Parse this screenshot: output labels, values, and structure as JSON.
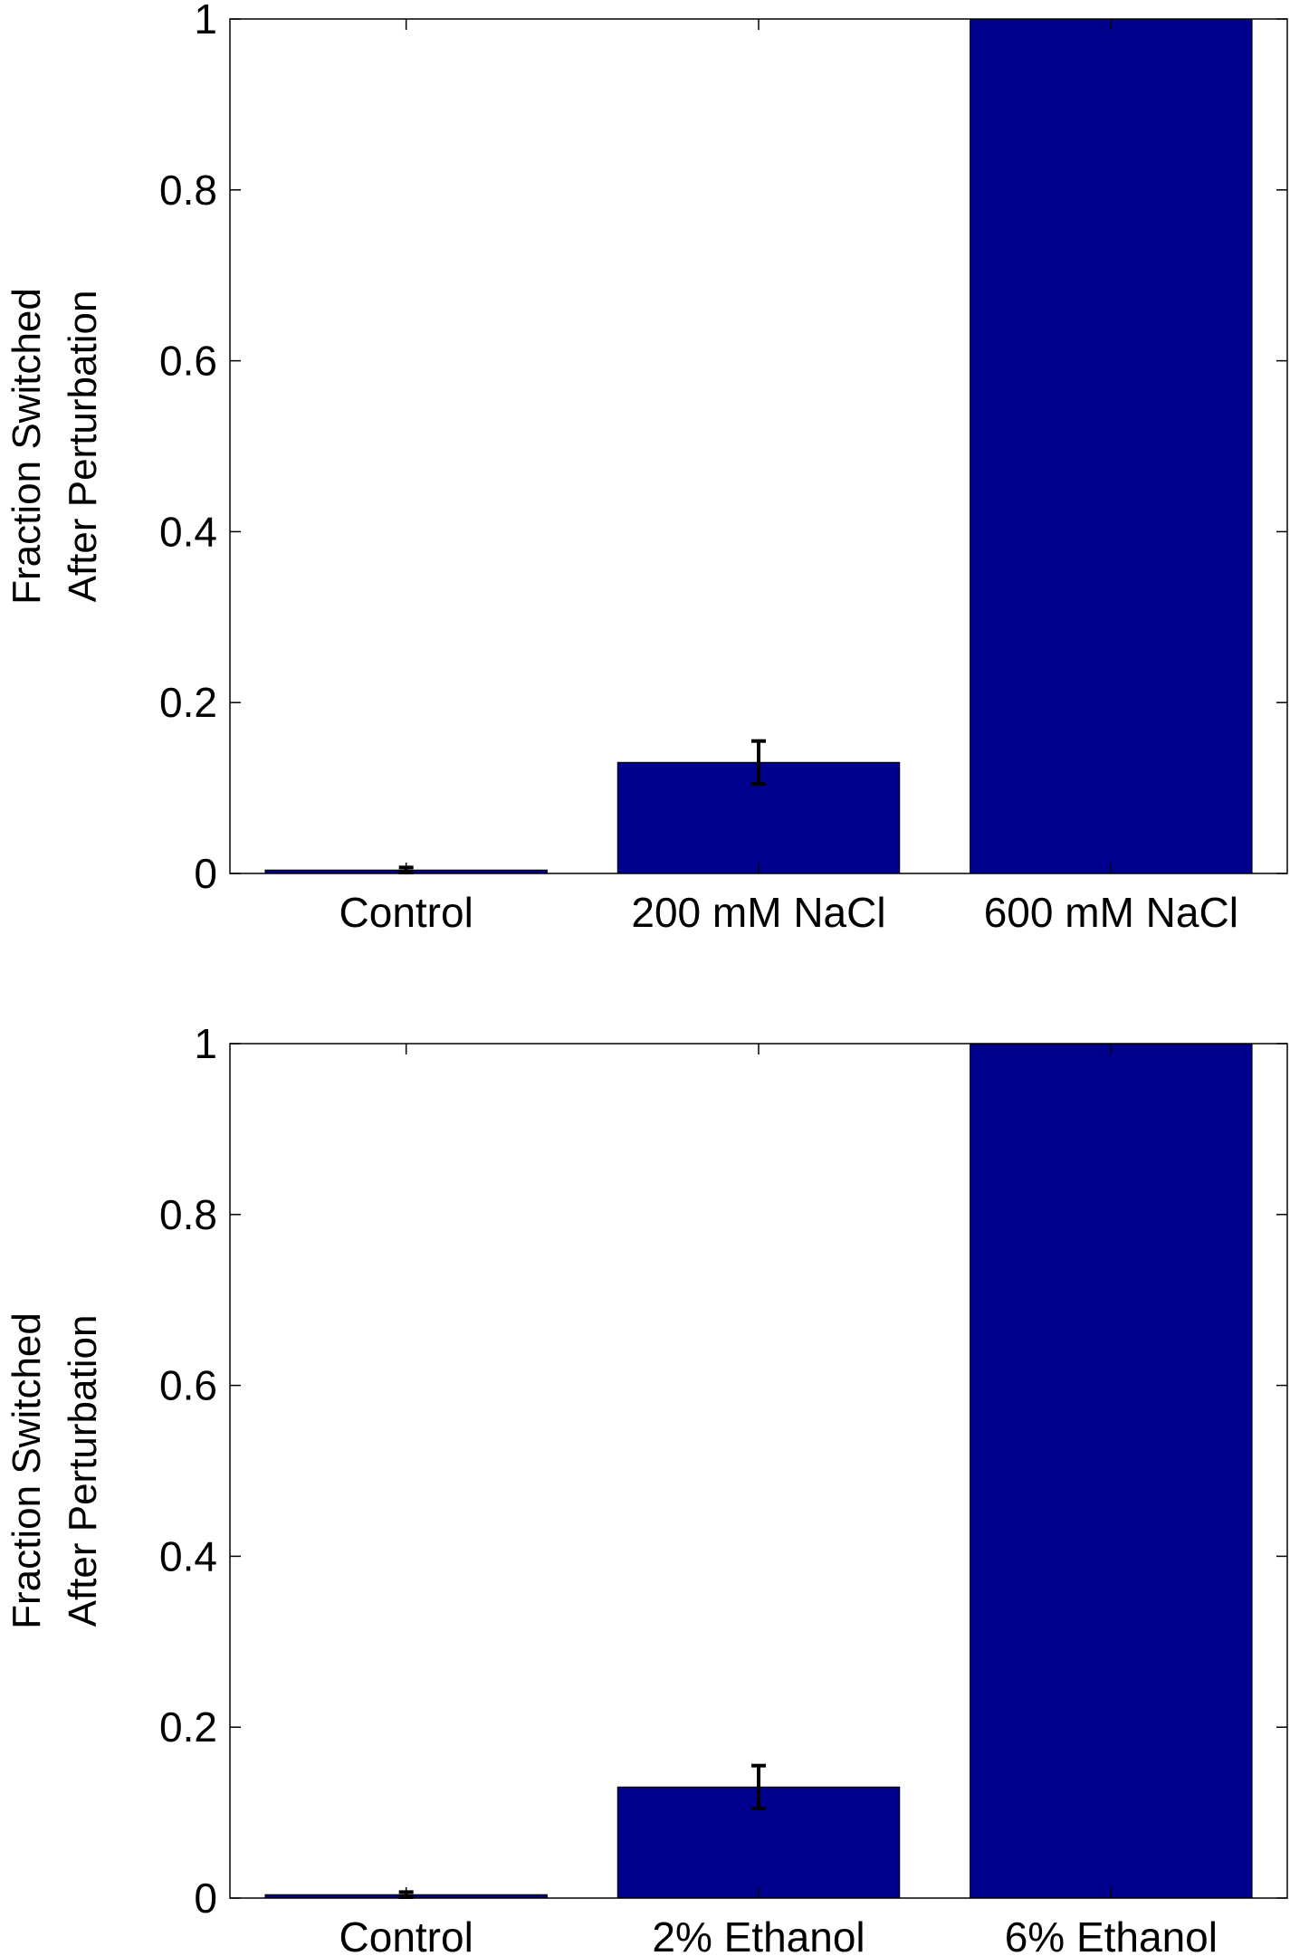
{
  "chart_data": [
    {
      "type": "bar",
      "categories": [
        "Control",
        "200 mM NaCl",
        "600 mM NaCl"
      ],
      "values": [
        0.004,
        0.13,
        1.0
      ],
      "error": [
        0.003,
        0.025,
        0.0
      ],
      "ylabel": [
        "Fraction Switched",
        "After Perturbation"
      ],
      "ylim": [
        0,
        1
      ],
      "yticks": [
        "0",
        "0.2",
        "0.4",
        "0.6",
        "0.8",
        "1"
      ],
      "grid": false,
      "bar_color": "#00008f"
    },
    {
      "type": "bar",
      "categories": [
        "Control",
        "2% Ethanol",
        "6% Ethanol"
      ],
      "values": [
        0.004,
        0.13,
        1.0
      ],
      "error": [
        0.003,
        0.025,
        0.0
      ],
      "ylabel": [
        "Fraction Switched",
        "After Perturbation"
      ],
      "ylim": [
        0,
        1
      ],
      "yticks": [
        "0",
        "0.2",
        "0.4",
        "0.6",
        "0.8",
        "1"
      ],
      "grid": false,
      "bar_color": "#00008f"
    }
  ]
}
